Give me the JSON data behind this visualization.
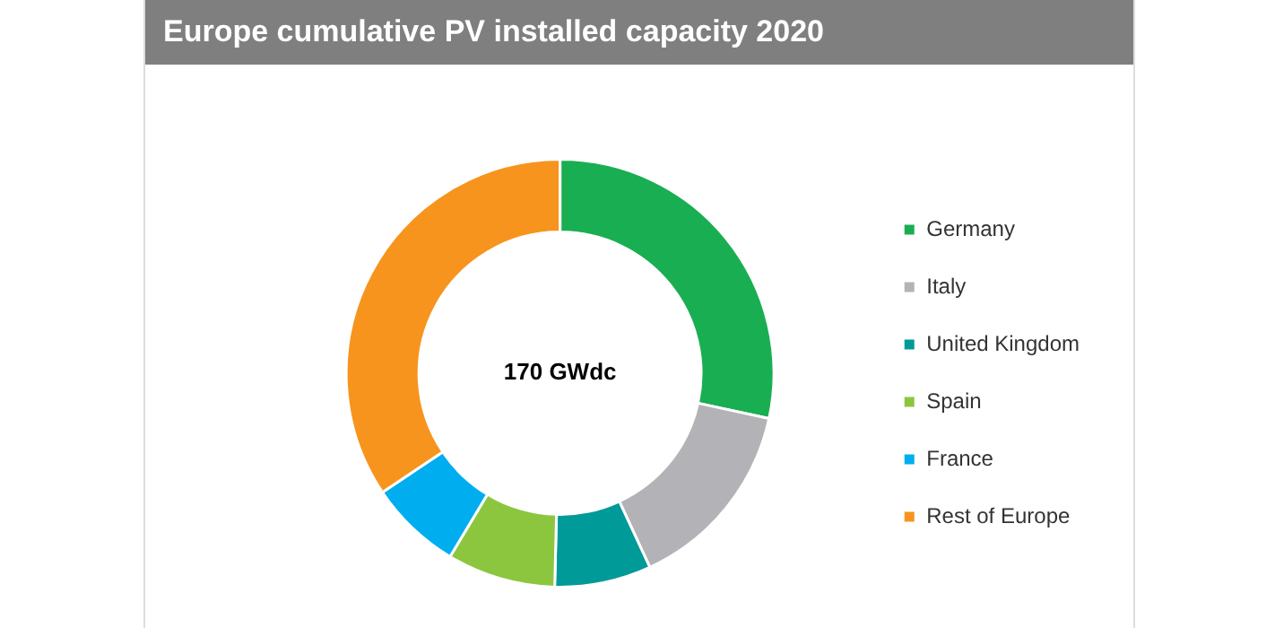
{
  "chart_data": {
    "type": "donut",
    "title": "Europe cumulative PV installed capacity 2020",
    "categories": [
      "Germany",
      "Italy",
      "United Kingdom",
      "Spain",
      "France",
      "Rest of Europe"
    ],
    "values": [
      28.4,
      14.7,
      7.3,
      8.2,
      7,
      34.4
    ],
    "colors": [
      "#1aae52",
      "#b3b3b7",
      "#009a98",
      "#8cc63f",
      "#00aeef",
      "#f7941d"
    ],
    "legend": "right",
    "annotations": [
      "170 GWdc"
    ]
  }
}
